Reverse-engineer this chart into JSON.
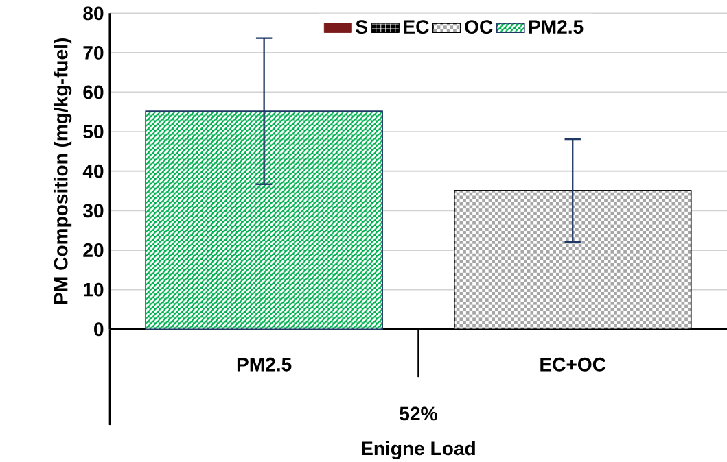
{
  "chart_data": {
    "type": "bar",
    "stacked": true,
    "xlabel": "Enigne Load",
    "ylabel": "PM Composition (mg/kg-fuel)",
    "categories": [
      "PM2.5",
      "EC+OC"
    ],
    "series": [
      {
        "name": "S",
        "color": "#7b1a1a",
        "values": [
          null,
          null
        ]
      },
      {
        "name": "EC",
        "color": "#000000",
        "values": [
          null,
          null
        ]
      },
      {
        "name": "OC",
        "color": "#a6a6a6",
        "values": [
          null,
          35.1
        ],
        "errors": [
          null,
          13
        ]
      },
      {
        "name": "PM2.5",
        "color": "#00b050",
        "values": [
          55.2,
          null
        ],
        "errors": [
          18.5,
          null
        ]
      }
    ],
    "ylim": [
      0,
      80
    ],
    "yticks": [
      0,
      10,
      20,
      30,
      40,
      50,
      60,
      70,
      80
    ],
    "grid": "y",
    "legend": "top",
    "annotations": [
      "52%"
    ]
  }
}
